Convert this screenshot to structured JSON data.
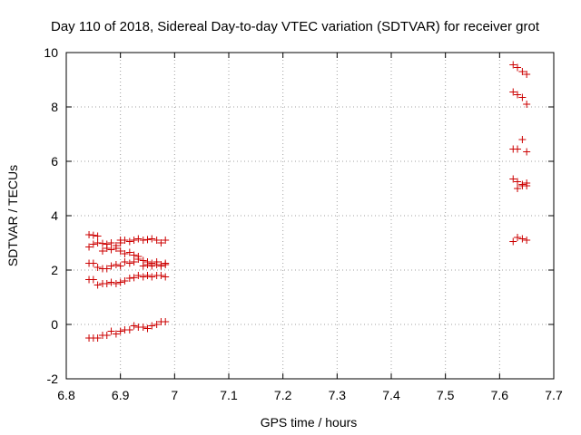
{
  "chart_data": {
    "type": "scatter",
    "title": "Day 110 of 2018, Sidereal Day-to-day VTEC variation (SDTVAR) for receiver grot",
    "xlabel": "GPS time / hours",
    "ylabel": "SDTVAR / TECUs",
    "xlim": [
      6.8,
      7.7
    ],
    "ylim": [
      -2,
      10
    ],
    "xticks": [
      "6.8",
      "6.9",
      "7",
      "7.1",
      "7.2",
      "7.3",
      "7.4",
      "7.5",
      "7.6",
      "7.7"
    ],
    "yticks": [
      "-2",
      "0",
      "2",
      "4",
      "6",
      "8",
      "10"
    ],
    "grid": true,
    "marker": "+",
    "color": "#cc0000",
    "series": [
      {
        "name": "SDTVAR",
        "points": [
          [
            6.842,
            3.3
          ],
          [
            6.85,
            3.28
          ],
          [
            6.858,
            3.25
          ],
          [
            6.842,
            2.85
          ],
          [
            6.85,
            2.95
          ],
          [
            6.858,
            3.0
          ],
          [
            6.867,
            2.98
          ],
          [
            6.875,
            2.95
          ],
          [
            6.883,
            3.0
          ],
          [
            6.892,
            2.9
          ],
          [
            6.9,
            3.0
          ],
          [
            6.867,
            2.7
          ],
          [
            6.875,
            2.8
          ],
          [
            6.883,
            2.75
          ],
          [
            6.892,
            2.8
          ],
          [
            6.9,
            2.7
          ],
          [
            6.908,
            2.6
          ],
          [
            6.917,
            2.65
          ],
          [
            6.925,
            2.55
          ],
          [
            6.933,
            2.5
          ],
          [
            6.9,
            3.1
          ],
          [
            6.908,
            3.1
          ],
          [
            6.917,
            3.05
          ],
          [
            6.925,
            3.1
          ],
          [
            6.933,
            3.15
          ],
          [
            6.942,
            3.1
          ],
          [
            6.95,
            3.12
          ],
          [
            6.958,
            3.15
          ],
          [
            6.967,
            3.1
          ],
          [
            6.975,
            3.0
          ],
          [
            6.983,
            3.1
          ],
          [
            6.842,
            2.25
          ],
          [
            6.85,
            2.25
          ],
          [
            6.858,
            2.1
          ],
          [
            6.867,
            2.05
          ],
          [
            6.875,
            2.05
          ],
          [
            6.883,
            2.15
          ],
          [
            6.892,
            2.2
          ],
          [
            6.9,
            2.15
          ],
          [
            6.908,
            2.3
          ],
          [
            6.917,
            2.25
          ],
          [
            6.925,
            2.3
          ],
          [
            6.933,
            2.4
          ],
          [
            6.942,
            2.35
          ],
          [
            6.95,
            2.2
          ],
          [
            6.958,
            2.15
          ],
          [
            6.967,
            2.2
          ],
          [
            6.975,
            2.15
          ],
          [
            6.983,
            2.25
          ],
          [
            6.942,
            2.15
          ],
          [
            6.95,
            2.3
          ],
          [
            6.958,
            2.25
          ],
          [
            6.967,
            2.3
          ],
          [
            6.975,
            2.2
          ],
          [
            6.983,
            2.2
          ],
          [
            6.842,
            1.65
          ],
          [
            6.85,
            1.65
          ],
          [
            6.858,
            1.45
          ],
          [
            6.867,
            1.5
          ],
          [
            6.875,
            1.5
          ],
          [
            6.883,
            1.55
          ],
          [
            6.892,
            1.5
          ],
          [
            6.9,
            1.55
          ],
          [
            6.908,
            1.6
          ],
          [
            6.917,
            1.7
          ],
          [
            6.925,
            1.72
          ],
          [
            6.933,
            1.8
          ],
          [
            6.942,
            1.75
          ],
          [
            6.95,
            1.8
          ],
          [
            6.958,
            1.75
          ],
          [
            6.967,
            1.8
          ],
          [
            6.975,
            1.8
          ],
          [
            6.983,
            1.75
          ],
          [
            6.842,
            -0.5
          ],
          [
            6.85,
            -0.5
          ],
          [
            6.858,
            -0.5
          ],
          [
            6.867,
            -0.4
          ],
          [
            6.875,
            -0.4
          ],
          [
            6.883,
            -0.25
          ],
          [
            6.892,
            -0.35
          ],
          [
            6.9,
            -0.25
          ],
          [
            6.908,
            -0.2
          ],
          [
            6.917,
            -0.2
          ],
          [
            6.925,
            -0.05
          ],
          [
            6.933,
            -0.1
          ],
          [
            6.942,
            -0.1
          ],
          [
            6.95,
            -0.15
          ],
          [
            6.958,
            -0.05
          ],
          [
            6.967,
            0.0
          ],
          [
            6.975,
            0.1
          ],
          [
            6.983,
            0.1
          ],
          [
            7.625,
            9.55
          ],
          [
            7.633,
            9.45
          ],
          [
            7.642,
            9.3
          ],
          [
            7.65,
            9.2
          ],
          [
            7.625,
            8.55
          ],
          [
            7.633,
            8.45
          ],
          [
            7.642,
            8.35
          ],
          [
            7.65,
            8.1
          ],
          [
            7.642,
            6.8
          ],
          [
            7.625,
            6.45
          ],
          [
            7.633,
            6.45
          ],
          [
            7.65,
            6.35
          ],
          [
            7.625,
            5.35
          ],
          [
            7.633,
            5.25
          ],
          [
            7.642,
            5.1
          ],
          [
            7.65,
            5.2
          ],
          [
            7.633,
            5.0
          ],
          [
            7.642,
            5.15
          ],
          [
            7.65,
            5.1
          ],
          [
            7.625,
            3.05
          ],
          [
            7.633,
            3.2
          ],
          [
            7.642,
            3.15
          ],
          [
            7.65,
            3.1
          ]
        ]
      }
    ]
  }
}
